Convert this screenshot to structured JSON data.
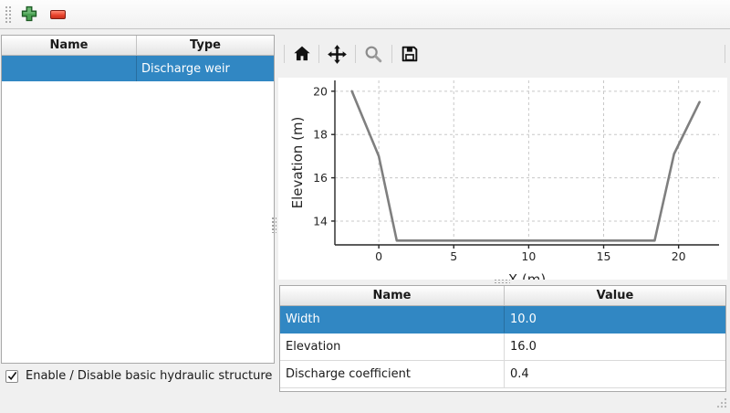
{
  "app_toolbar": {
    "add_tooltip": "Add structure",
    "remove_tooltip": "Remove structure"
  },
  "structures_table": {
    "columns": [
      "Name",
      "Type"
    ],
    "rows": [
      {
        "name": "",
        "type": "Discharge weir",
        "selected": true
      }
    ]
  },
  "checkbox": {
    "label": "Enable / Disable basic hydraulic structure",
    "checked": true
  },
  "plot_toolbar": {
    "buttons": [
      "home",
      "pan",
      "zoom",
      "save"
    ]
  },
  "chart_data": {
    "type": "line",
    "title": "",
    "xlabel": "X (m)",
    "ylabel": "Elevation (m)",
    "x": [
      -1.8,
      0,
      1.2,
      18.4,
      19.7,
      21.4
    ],
    "y": [
      20,
      17,
      13.1,
      13.1,
      17.1,
      19.5
    ],
    "xlim": [
      -2.93,
      22.7
    ],
    "ylim": [
      12.9,
      20.5
    ],
    "xticks": [
      0,
      5,
      10,
      15,
      20
    ],
    "yticks": [
      14,
      16,
      18,
      20
    ],
    "grid": true,
    "legend": false,
    "line_color": "#7f7f7f"
  },
  "properties_table": {
    "columns": [
      "Name",
      "Value"
    ],
    "rows": [
      {
        "name": "Width",
        "value": "10.0",
        "selected": true
      },
      {
        "name": "Elevation",
        "value": "16.0",
        "selected": false
      },
      {
        "name": "Discharge coefficient",
        "value": "0.4",
        "selected": false
      }
    ]
  },
  "colors": {
    "selection": "#3187c3",
    "chart_line": "#7f7f7f",
    "grid_line": "#c8c8c8",
    "axis": "#262626"
  }
}
